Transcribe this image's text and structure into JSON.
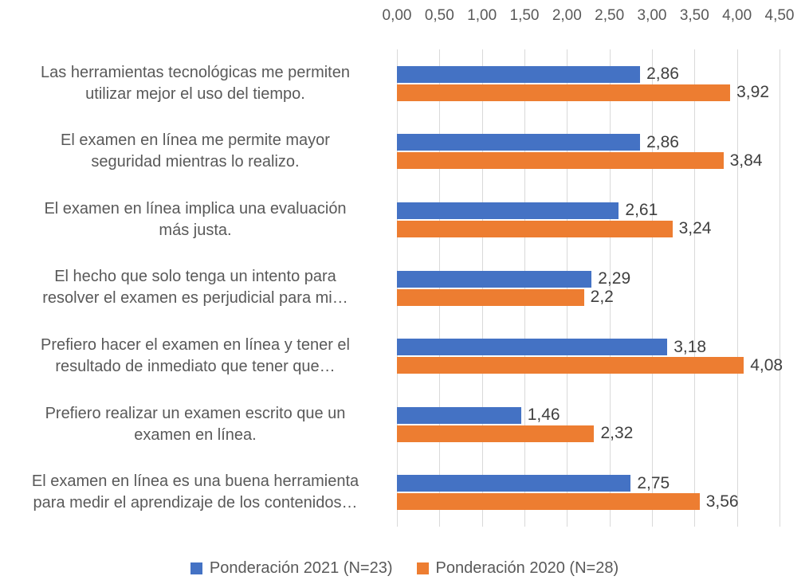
{
  "chart_data": {
    "type": "bar",
    "orientation": "horizontal",
    "title": "",
    "categories": [
      "Las herramientas tecnológicas me permiten\nutilizar mejor el uso del tiempo.",
      "El examen en línea me permite mayor\nseguridad mientras lo realizo.",
      "El examen en línea implica una evaluación\nmás justa.",
      "El hecho que solo tenga un intento para\nresolver el examen es perjudicial para mi…",
      "Prefiero hacer el examen en línea y tener el\nresultado de inmediato que tener que…",
      "Prefiero realizar un examen escrito que un\nexamen en línea.",
      "El examen en línea es una buena herramienta\npara medir el aprendizaje de los contenidos…"
    ],
    "series": [
      {
        "name": "Ponderación 2021 (N=23)",
        "color": "#4472C4",
        "values": [
          2.86,
          2.86,
          2.61,
          2.29,
          3.18,
          1.46,
          2.75
        ],
        "labels": [
          "2,86",
          "2,86",
          "2,61",
          "2,29",
          "3,18",
          "1,46",
          "2,75"
        ]
      },
      {
        "name": "Ponderación 2020 (N=28)",
        "color": "#ED7D31",
        "values": [
          3.92,
          3.84,
          3.24,
          2.2,
          4.08,
          2.32,
          3.56
        ],
        "labels": [
          "3,92",
          "3,84",
          "3,24",
          "2,2",
          "4,08",
          "2,32",
          "3,56"
        ]
      }
    ],
    "x_axis": {
      "position": "top",
      "min": 0,
      "max": 4.5,
      "ticks": [
        "0,00",
        "0,50",
        "1,00",
        "1,50",
        "2,00",
        "2,50",
        "3,00",
        "3,50",
        "4,00",
        "4,50"
      ]
    },
    "grid": true,
    "legend_position": "bottom",
    "colors": {
      "gridline": "#d9d9d9",
      "axis_text": "#595959",
      "category_text": "#595959",
      "data_label_text": "#404040",
      "background": "#ffffff"
    }
  }
}
